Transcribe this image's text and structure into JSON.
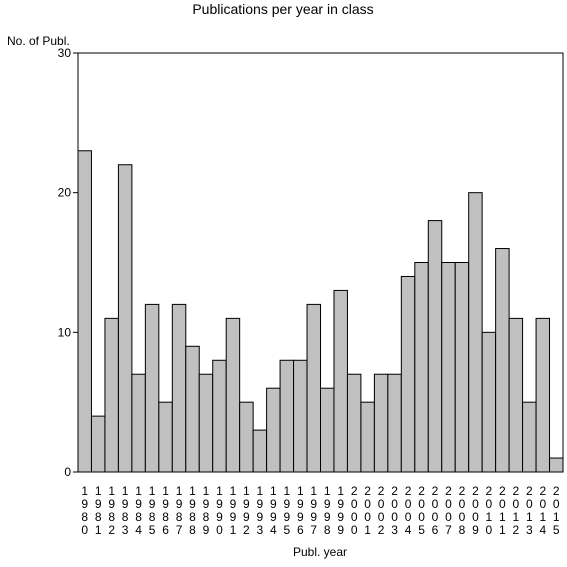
{
  "chart_data": {
    "type": "bar",
    "title": "Publications per year in class",
    "xlabel": "Publ. year",
    "ylabel": "No. of Publ.",
    "ylim": [
      0,
      30
    ],
    "yticks": [
      0,
      10,
      20,
      30
    ],
    "grid": false,
    "categories": [
      "1980",
      "1981",
      "1982",
      "1983",
      "1984",
      "1985",
      "1986",
      "1987",
      "1988",
      "1989",
      "1990",
      "1991",
      "1992",
      "1993",
      "1994",
      "1995",
      "1996",
      "1997",
      "1998",
      "1999",
      "2000",
      "2001",
      "2002",
      "2003",
      "2004",
      "2005",
      "2006",
      "2007",
      "2008",
      "2009",
      "2010",
      "2011",
      "2012",
      "2013",
      "2014",
      "2015"
    ],
    "values": [
      23,
      4,
      11,
      22,
      7,
      12,
      5,
      12,
      9,
      7,
      8,
      11,
      5,
      3,
      6,
      8,
      8,
      12,
      6,
      13,
      7,
      5,
      7,
      7,
      14,
      15,
      18,
      15,
      15,
      20,
      10,
      16,
      11,
      5,
      11,
      1
    ],
    "bar_color": "#c0c0c0",
    "bar_edge_color": "#000000"
  }
}
